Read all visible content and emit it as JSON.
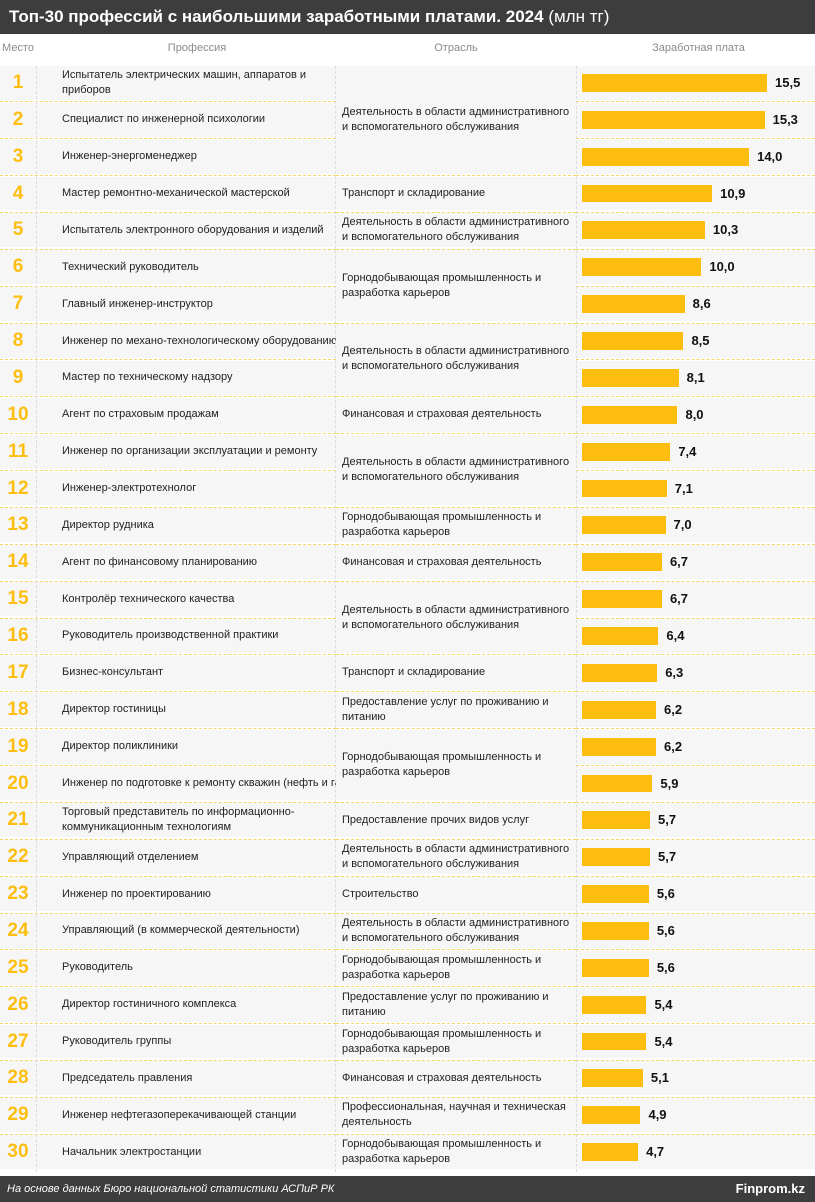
{
  "header": {
    "title": "Топ-30 профессий с наибольшими заработными платами. 2024",
    "unit": "(млн тг)"
  },
  "columns": {
    "place": "Место",
    "profession": "Профессия",
    "industry": "Отрасль",
    "salary": "Заработная плата"
  },
  "footer": {
    "source": "На основе данных Бюро национальной статистики АСПиР РК",
    "brand": "Finprom.kz"
  },
  "colors": {
    "bar": "#fdbe10",
    "header_bg": "#3d3d3d"
  },
  "chart_data": {
    "type": "bar",
    "orientation": "horizontal",
    "categories": [
      "Испытатель электрических машин, аппаратов и приборов",
      "Специалист по инженерной психологии",
      "Инженер-энергоменеджер",
      "Мастер ремонтно-механической мастерской",
      "Испытатель электронного оборудования и изделий",
      "Технический руководитель",
      "Главный инженер-инструктор",
      "Инженер по механо-технологическому оборудованию",
      "Мастер по техническому надзору",
      "Агент по страховым продажам",
      "Инженер по организации эксплуатации и ремонту",
      "Инженер-электротехнолог",
      "Директор рудника",
      "Агент по финансовому планированию",
      "Контролёр технического качества",
      "Руководитель производственной практики",
      "Бизнес-консультант",
      "Директор гостиницы",
      "Директор поликлиники",
      "Инженер по подготовке к ремонту скважин (нефть и газ)",
      "Торговый представитель по информационно-коммуникационным технологиям",
      "Управляющий отделением",
      "Инженер по проектированию",
      "Управляющий (в коммерческой деятельности)",
      "Руководитель",
      "Директор гостиничного комплекса",
      "Руководитель группы",
      "Председатель правления",
      "Инженер нефтегазоперекачивающей станции",
      "Начальник электростанции"
    ],
    "values": [
      15.5,
      15.3,
      14.0,
      10.9,
      10.3,
      10.0,
      8.6,
      8.5,
      8.1,
      8.0,
      7.4,
      7.1,
      7.0,
      6.7,
      6.7,
      6.4,
      6.3,
      6.2,
      6.2,
      5.9,
      5.7,
      5.7,
      5.6,
      5.6,
      5.6,
      5.4,
      5.4,
      5.1,
      4.9,
      4.7
    ],
    "labels": [
      "15,5",
      "15,3",
      "14,0",
      "10,9",
      "10,3",
      "10,0",
      "8,6",
      "8,5",
      "8,1",
      "8,0",
      "7,4",
      "7,1",
      "7,0",
      "6,7",
      "6,7",
      "6,4",
      "6,3",
      "6,2",
      "6,2",
      "5,9",
      "5,7",
      "5,7",
      "5,6",
      "5,6",
      "5,6",
      "5,4",
      "5,4",
      "5,1",
      "4,9",
      "4,7"
    ],
    "xlim": [
      0,
      15.5
    ],
    "industry_groups": [
      {
        "rows": [
          1,
          3
        ],
        "label": "Деятельность в области административного и вспомогательного обслуживания"
      },
      {
        "rows": [
          4,
          4
        ],
        "label": "Транспорт и складирование"
      },
      {
        "rows": [
          5,
          5
        ],
        "label": "Деятельность в области административного и вспомогательного обслуживания"
      },
      {
        "rows": [
          6,
          7
        ],
        "label": "Горнодобывающая промышленность и разработка карьеров"
      },
      {
        "rows": [
          8,
          9
        ],
        "label": "Деятельность в области административного и вспомогательного обслуживания"
      },
      {
        "rows": [
          10,
          10
        ],
        "label": "Финансовая и страховая деятельность"
      },
      {
        "rows": [
          11,
          12
        ],
        "label": "Деятельность в области административного и вспомогательного обслуживания"
      },
      {
        "rows": [
          13,
          13
        ],
        "label": "Горнодобывающая промышленность и разработка карьеров"
      },
      {
        "rows": [
          14,
          14
        ],
        "label": "Финансовая и страховая деятельность"
      },
      {
        "rows": [
          15,
          16
        ],
        "label": "Деятельность в области административного и вспомогательного обслуживания"
      },
      {
        "rows": [
          17,
          17
        ],
        "label": "Транспорт и складирование"
      },
      {
        "rows": [
          18,
          18
        ],
        "label": "Предоставление услуг по проживанию и питанию"
      },
      {
        "rows": [
          19,
          20
        ],
        "label": "Горнодобывающая промышленность и разработка карьеров"
      },
      {
        "rows": [
          21,
          21
        ],
        "label": "Предоставление прочих видов услуг"
      },
      {
        "rows": [
          22,
          22
        ],
        "label": "Деятельность в области административного и вспомогательного обслуживания"
      },
      {
        "rows": [
          23,
          23
        ],
        "label": "Строительство"
      },
      {
        "rows": [
          24,
          24
        ],
        "label": "Деятельность в области административного и вспомогательного обслуживания"
      },
      {
        "rows": [
          25,
          25
        ],
        "label": "Горнодобывающая промышленность и разработка карьеров"
      },
      {
        "rows": [
          26,
          26
        ],
        "label": "Предоставление услуг по проживанию и питанию"
      },
      {
        "rows": [
          27,
          27
        ],
        "label": "Горнодобывающая промышленность и разработка карьеров"
      },
      {
        "rows": [
          28,
          28
        ],
        "label": "Финансовая и страховая деятельность"
      },
      {
        "rows": [
          29,
          29
        ],
        "label": "Профессиональная, научная и техническая деятельность"
      },
      {
        "rows": [
          30,
          30
        ],
        "label": "Горнодобывающая промышленность и разработка карьеров"
      }
    ]
  }
}
